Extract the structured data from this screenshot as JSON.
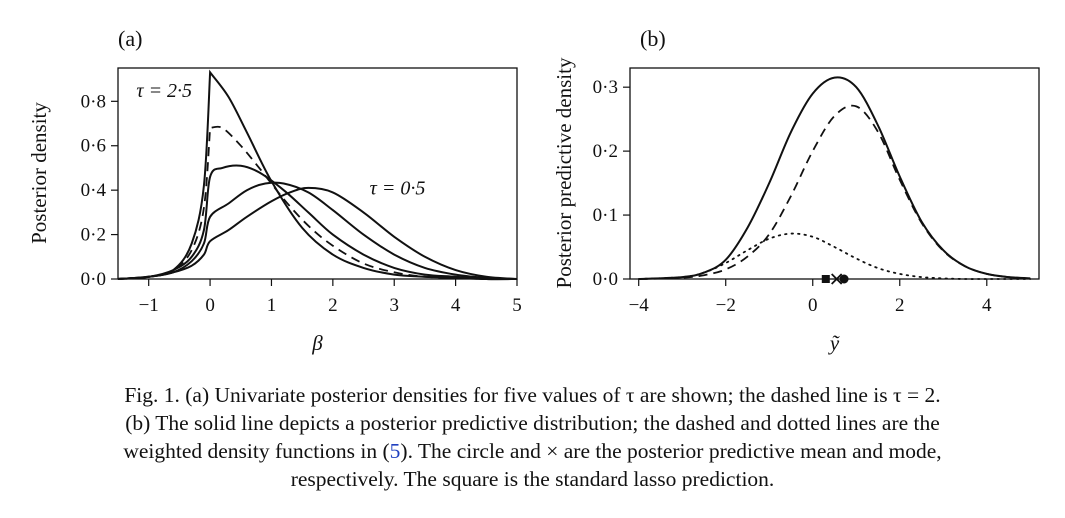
{
  "chart_data": [
    {
      "type": "line",
      "panel_label": "(a)",
      "xlabel": "β",
      "ylabel": "Posterior density",
      "xlim": [
        -1.5,
        5
      ],
      "ylim": [
        0,
        0.95
      ],
      "xticks": [
        -1,
        0,
        1,
        2,
        3,
        4,
        5
      ],
      "xtick_labels": [
        "−1",
        "0",
        "1",
        "2",
        "3",
        "4",
        "5"
      ],
      "yticks": [
        0,
        0.2,
        0.4,
        0.6,
        0.8
      ],
      "ytick_labels": [
        "0·0",
        "0·2",
        "0·4",
        "0·6",
        "0·8"
      ],
      "annotations": [
        {
          "text": "τ = 2·5",
          "x": -1.2,
          "y": 0.82
        },
        {
          "text": "τ = 0·5",
          "x": 2.6,
          "y": 0.38
        }
      ],
      "series": [
        {
          "style": "solid",
          "x": [
            -1.5,
            -1.0,
            -0.6,
            -0.3,
            -0.1,
            0,
            0.3,
            0.6,
            1.0,
            1.5,
            2.0,
            2.5,
            3.0,
            3.5,
            4.0,
            4.5,
            5.0
          ],
          "y": [
            0.0,
            0.01,
            0.04,
            0.16,
            0.42,
            0.93,
            0.82,
            0.66,
            0.44,
            0.23,
            0.11,
            0.05,
            0.02,
            0.01,
            0.005,
            0.0,
            0.0
          ]
        },
        {
          "style": "dashed",
          "x": [
            -1.5,
            -1.0,
            -0.6,
            -0.3,
            -0.1,
            0,
            0.2,
            0.5,
            0.8,
            1.2,
            1.6,
            2.0,
            2.5,
            3.0,
            3.5,
            4.0,
            4.5,
            5.0
          ],
          "y": [
            0.0,
            0.01,
            0.04,
            0.13,
            0.32,
            0.68,
            0.68,
            0.6,
            0.5,
            0.36,
            0.24,
            0.15,
            0.07,
            0.03,
            0.01,
            0.005,
            0.0,
            0.0
          ]
        },
        {
          "style": "solid",
          "x": [
            -1.5,
            -1.0,
            -0.6,
            -0.3,
            -0.1,
            0,
            0.2,
            0.5,
            0.8,
            1.2,
            1.6,
            2.0,
            2.5,
            3.0,
            3.5,
            4.0,
            4.5,
            5.0
          ],
          "y": [
            0.0,
            0.01,
            0.04,
            0.1,
            0.22,
            0.46,
            0.5,
            0.51,
            0.48,
            0.4,
            0.3,
            0.2,
            0.11,
            0.05,
            0.02,
            0.01,
            0.0,
            0.0
          ]
        },
        {
          "style": "solid",
          "x": [
            -1.5,
            -1.0,
            -0.6,
            -0.3,
            -0.1,
            0,
            0.3,
            0.6,
            0.9,
            1.2,
            1.6,
            2.0,
            2.5,
            3.0,
            3.5,
            4.0,
            4.5,
            5.0
          ],
          "y": [
            0.0,
            0.01,
            0.03,
            0.08,
            0.16,
            0.28,
            0.34,
            0.4,
            0.43,
            0.43,
            0.39,
            0.31,
            0.2,
            0.11,
            0.05,
            0.02,
            0.005,
            0.0
          ]
        },
        {
          "style": "solid",
          "x": [
            -1.5,
            -1.0,
            -0.6,
            -0.3,
            -0.1,
            0,
            0.3,
            0.6,
            1.0,
            1.3,
            1.6,
            2.0,
            2.5,
            3.0,
            3.5,
            4.0,
            4.5,
            5.0
          ],
          "y": [
            0.0,
            0.01,
            0.03,
            0.06,
            0.11,
            0.17,
            0.22,
            0.28,
            0.35,
            0.39,
            0.41,
            0.39,
            0.3,
            0.19,
            0.1,
            0.04,
            0.01,
            0.0
          ]
        }
      ]
    },
    {
      "type": "line",
      "panel_label": "(b)",
      "xlabel": "ỹ",
      "ylabel": "Posterior predictive density",
      "xlim": [
        -4.2,
        5.2
      ],
      "ylim": [
        0,
        0.33
      ],
      "xticks": [
        -4,
        -2,
        0,
        2,
        4
      ],
      "xtick_labels": [
        "−4",
        "−2",
        "0",
        "2",
        "4"
      ],
      "yticks": [
        0,
        0.1,
        0.2,
        0.3
      ],
      "ytick_labels": [
        "0·0",
        "0·1",
        "0·2",
        "0·3"
      ],
      "series": [
        {
          "style": "solid",
          "x": [
            -4.0,
            -3.0,
            -2.5,
            -2.0,
            -1.5,
            -1.0,
            -0.5,
            0.0,
            0.5,
            1.0,
            1.5,
            2.0,
            2.5,
            3.0,
            3.5,
            4.0,
            4.5,
            5.0
          ],
          "y": [
            0.0,
            0.003,
            0.01,
            0.03,
            0.08,
            0.15,
            0.23,
            0.29,
            0.315,
            0.3,
            0.24,
            0.16,
            0.09,
            0.045,
            0.02,
            0.008,
            0.003,
            0.001
          ]
        },
        {
          "style": "dashed",
          "x": [
            -4.0,
            -3.0,
            -2.5,
            -2.0,
            -1.5,
            -1.0,
            -0.5,
            0.0,
            0.5,
            1.0,
            1.5,
            2.0,
            2.5,
            3.0,
            3.5,
            4.0,
            4.5,
            5.0
          ],
          "y": [
            0.0,
            0.002,
            0.006,
            0.015,
            0.035,
            0.07,
            0.13,
            0.2,
            0.255,
            0.27,
            0.23,
            0.155,
            0.088,
            0.044,
            0.02,
            0.008,
            0.003,
            0.001
          ]
        },
        {
          "style": "dotted",
          "x": [
            -4.0,
            -3.0,
            -2.5,
            -2.0,
            -1.5,
            -1.0,
            -0.5,
            0.0,
            0.5,
            1.0,
            1.5,
            2.0,
            2.5,
            3.0,
            3.5,
            4.0,
            4.5,
            5.0
          ],
          "y": [
            0.0,
            0.003,
            0.01,
            0.025,
            0.045,
            0.063,
            0.071,
            0.066,
            0.05,
            0.032,
            0.017,
            0.008,
            0.003,
            0.001,
            0.0,
            0.0,
            0.0,
            0.0
          ]
        }
      ],
      "markers": [
        {
          "shape": "square",
          "x": 0.3,
          "y": 0.0,
          "meaning": "standard lasso prediction"
        },
        {
          "shape": "cross",
          "x": 0.55,
          "y": 0.0,
          "meaning": "posterior predictive mode"
        },
        {
          "shape": "circle",
          "x": 0.72,
          "y": 0.0,
          "meaning": "posterior predictive mean"
        }
      ]
    }
  ],
  "caption": {
    "line1": "Fig. 1. (a) Univariate posterior densities for five values of τ are shown; the dashed line is τ = 2.",
    "line2": "(b) The solid line depicts a posterior predictive distribution; the dashed and dotted lines are the",
    "line3_before": "weighted density functions in (",
    "line3_ref": "5",
    "line3_after": "). The circle and × are the posterior predictive mean and mode,",
    "line4": "respectively. The square is the standard lasso prediction."
  }
}
